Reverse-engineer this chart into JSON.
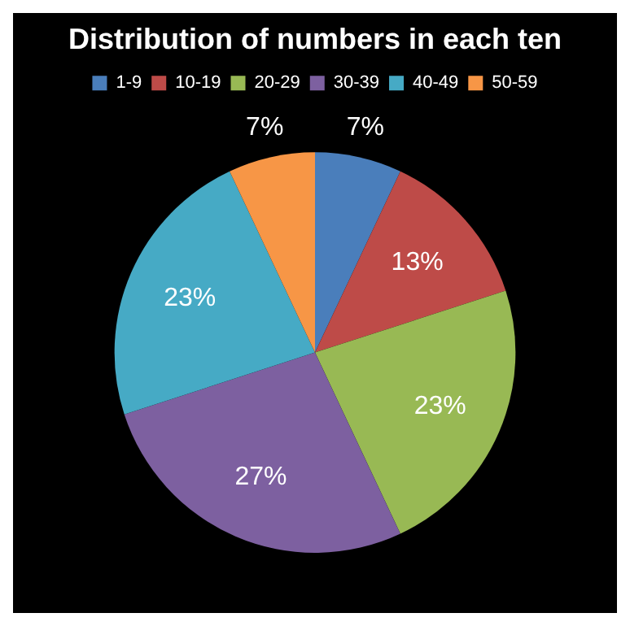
{
  "chart_data": {
    "type": "pie",
    "title": "Distribution of numbers in each ten",
    "categories": [
      "1-9",
      "10-19",
      "20-29",
      "30-39",
      "40-49",
      "50-59"
    ],
    "values": [
      7,
      13,
      23,
      27,
      23,
      7
    ],
    "colors": [
      "#4a7ebb",
      "#be4b48",
      "#98b954",
      "#7d60a0",
      "#46aac5",
      "#f79646"
    ],
    "value_labels": [
      "7%",
      "13%",
      "23%",
      "27%",
      "23%",
      "7%"
    ],
    "legend": "top"
  }
}
